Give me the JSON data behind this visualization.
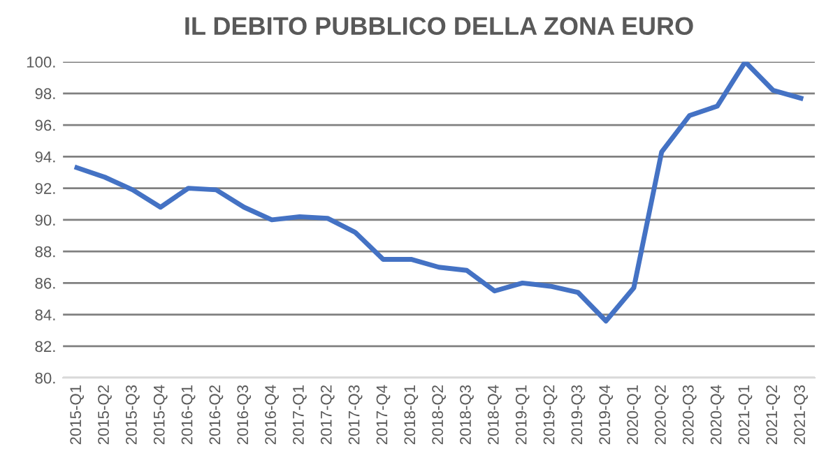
{
  "chart_data": {
    "type": "line",
    "title": "IL DEBITO PUBBLICO DELLA ZONA EURO",
    "categories": [
      "2015-Q1",
      "2015-Q2",
      "2015-Q3",
      "2015-Q4",
      "2016-Q1",
      "2016-Q2",
      "2016-Q3",
      "2016-Q4",
      "2017-Q1",
      "2017-Q2",
      "2017-Q3",
      "2017-Q4",
      "2018-Q1",
      "2018-Q2",
      "2018-Q3",
      "2018-Q4",
      "2019-Q1",
      "2019-Q2",
      "2019-Q3",
      "2019-Q4",
      "2020-Q1",
      "2020-Q2",
      "2020-Q3",
      "2020-Q4",
      "2021-Q1",
      "2021-Q2",
      "2021-Q3"
    ],
    "series": [
      {
        "color": "#4472c4",
        "values": [
          93.3,
          92.7,
          91.9,
          90.8,
          92.0,
          91.9,
          90.8,
          90.0,
          90.2,
          90.1,
          89.2,
          87.5,
          87.5,
          87.0,
          86.8,
          85.5,
          86.0,
          85.8,
          85.4,
          83.6,
          85.7,
          94.3,
          96.6,
          97.2,
          100.0,
          98.2,
          97.7
        ]
      }
    ],
    "ylim": [
      80,
      100
    ],
    "yticks": [
      {
        "value": 80,
        "label": "80."
      },
      {
        "value": 82,
        "label": "82."
      },
      {
        "value": 84,
        "label": "84."
      },
      {
        "value": 86,
        "label": "86."
      },
      {
        "value": 88,
        "label": "88."
      },
      {
        "value": 90,
        "label": "90."
      },
      {
        "value": 92,
        "label": "92."
      },
      {
        "value": 94,
        "label": "94."
      },
      {
        "value": 96,
        "label": "96."
      },
      {
        "value": 98,
        "label": "98."
      },
      {
        "value": 100,
        "label": "100."
      }
    ],
    "grid": "y",
    "marker": "none",
    "line_style": "solid"
  }
}
